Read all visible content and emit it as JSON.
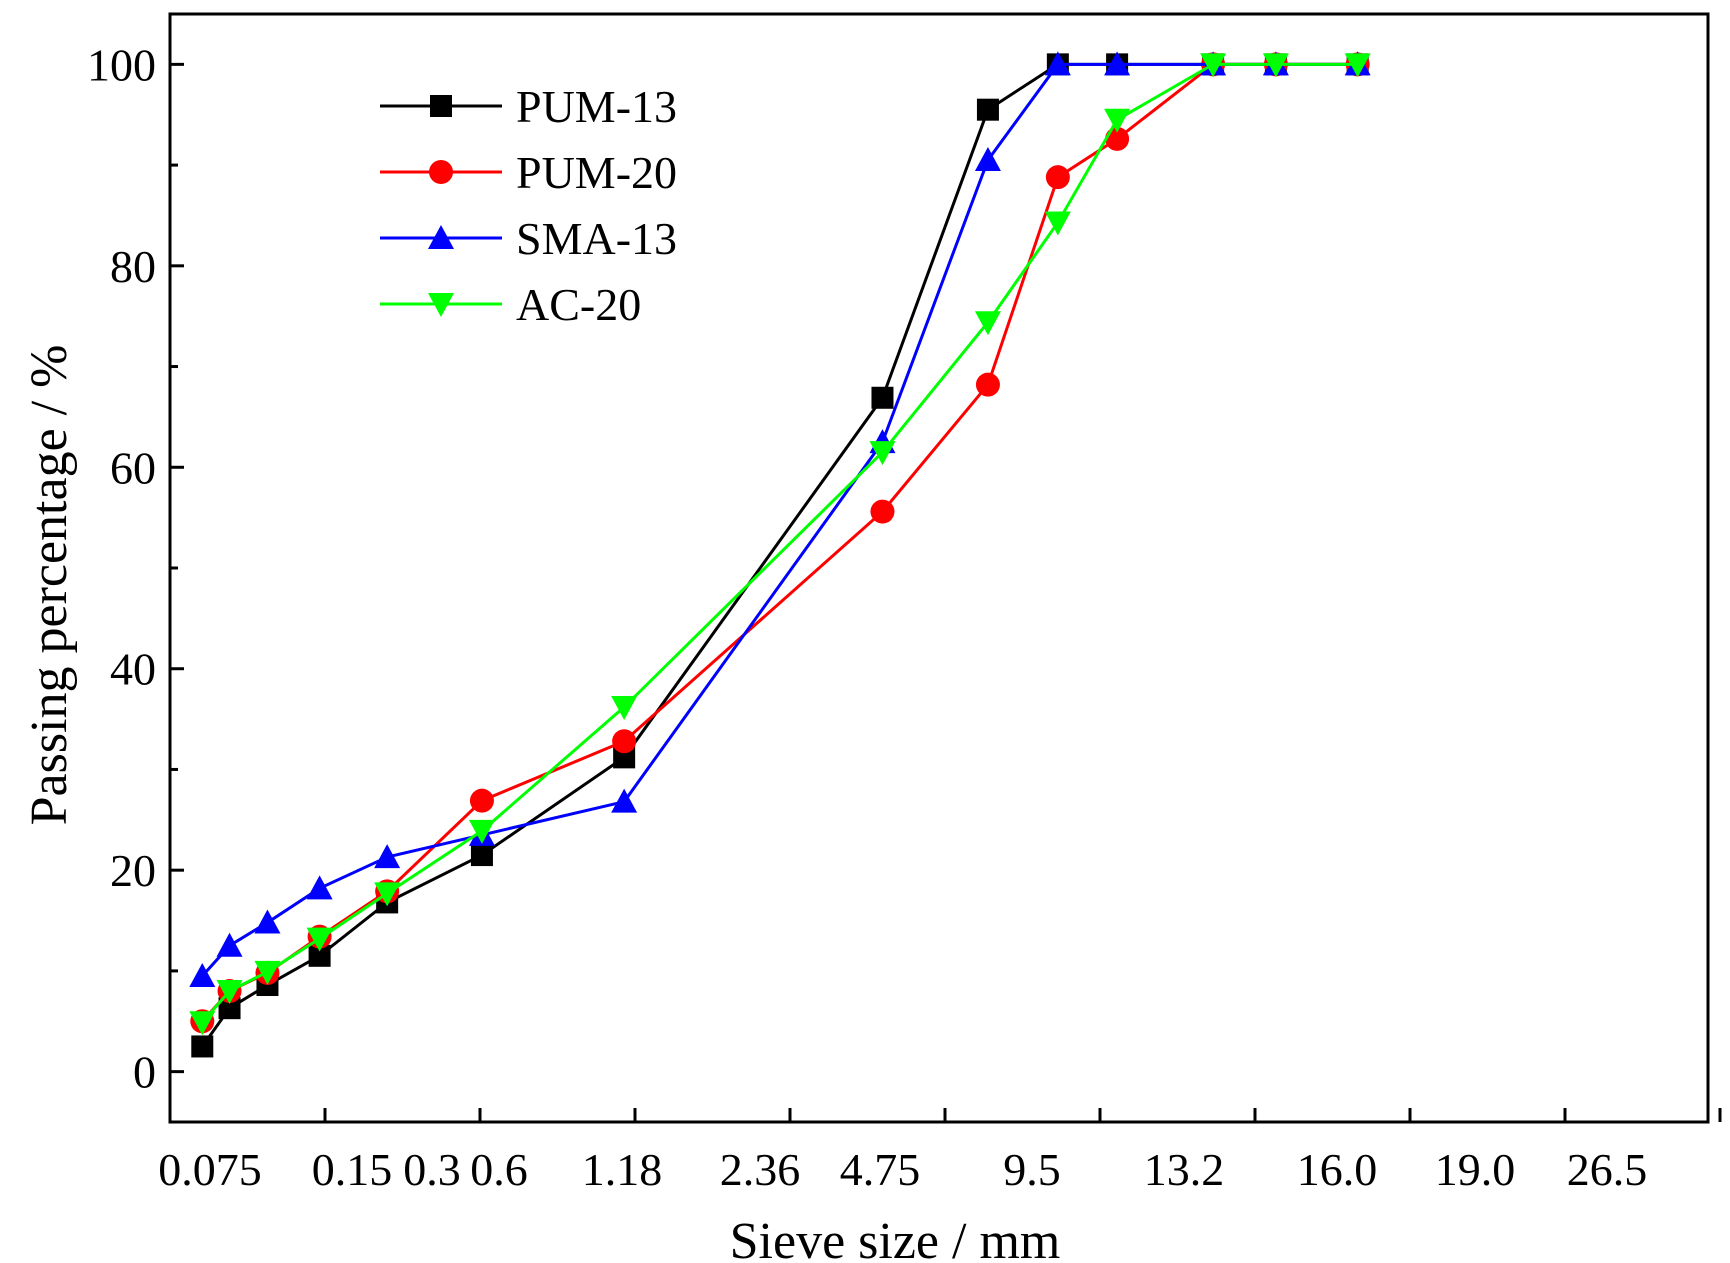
{
  "chart_data": {
    "type": "line",
    "xlabel": "Sieve size / mm",
    "ylabel": "Passing percentage / %",
    "ylim": [
      -5,
      105
    ],
    "yticks": [
      0,
      20,
      40,
      60,
      80,
      100
    ],
    "grid": false,
    "legend_position": "top-left",
    "x_tick_labels": [
      "0.075",
      "0.15",
      "0.3",
      "0.6",
      "1.18",
      "2.36",
      "4.75",
      "9.5",
      "13.2",
      "16.0",
      "19.0",
      "26.5"
    ],
    "series": [
      {
        "name": "PUM-13",
        "color": "#000000",
        "marker": "square",
        "x": [
          0.61,
          0.84,
          1.16,
          1.6,
          2.17,
          2.97,
          4.17,
          6.35,
          7.24,
          7.83,
          8.33,
          9.14,
          9.67,
          10.36
        ],
        "values": [
          2.5,
          6.3,
          8.6,
          11.5,
          16.8,
          21.5,
          31.2,
          66.9,
          95.5,
          100,
          100,
          100,
          100,
          100
        ]
      },
      {
        "name": "PUM-20",
        "color": "#ff0000",
        "marker": "circle",
        "x": [
          0.61,
          0.84,
          1.16,
          1.6,
          2.17,
          2.97,
          4.17,
          6.35,
          7.24,
          7.83,
          8.33,
          9.14,
          9.67,
          10.36
        ],
        "values": [
          5.0,
          8.0,
          9.8,
          13.4,
          17.9,
          26.9,
          32.8,
          55.6,
          68.2,
          88.8,
          92.6,
          100,
          100,
          100
        ]
      },
      {
        "name": "SMA-13",
        "color": "#0000ff",
        "marker": "triangle-up",
        "x": [
          0.61,
          0.84,
          1.16,
          1.6,
          2.17,
          2.97,
          4.17,
          6.35,
          7.24,
          7.83,
          8.33,
          9.14,
          9.67,
          10.36
        ],
        "values": [
          9.5,
          12.5,
          14.8,
          18.2,
          21.3,
          23.5,
          26.8,
          62.5,
          90.5,
          100,
          100,
          100,
          100,
          100
        ]
      },
      {
        "name": "AC-20",
        "color": "#00ff00",
        "marker": "triangle-down",
        "x": [
          0.61,
          0.84,
          1.16,
          1.6,
          2.17,
          2.97,
          4.17,
          6.35,
          7.24,
          7.83,
          8.33,
          9.14,
          9.67,
          10.36
        ],
        "values": [
          4.9,
          8.0,
          9.9,
          13.2,
          17.7,
          23.9,
          36.2,
          61.5,
          74.4,
          84.3,
          94.5,
          100,
          100,
          100
        ]
      }
    ]
  }
}
